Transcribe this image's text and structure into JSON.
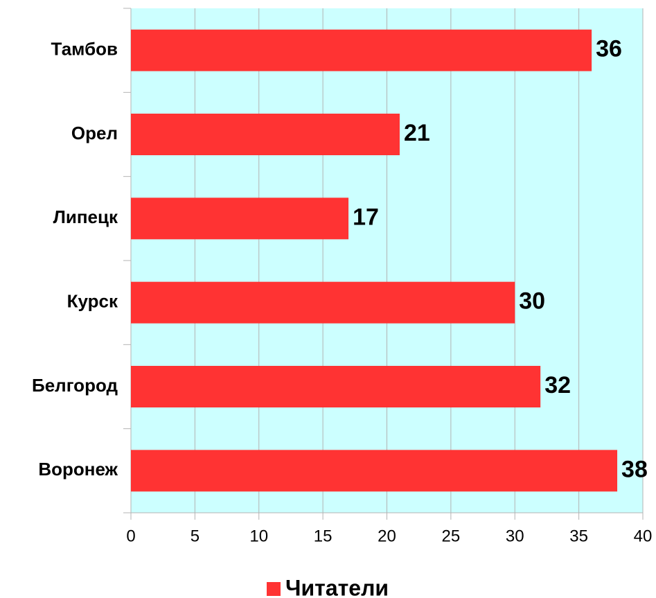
{
  "chart_data": {
    "type": "hbar",
    "categories": [
      "Тамбов",
      "Орел",
      "Липецк",
      "Курск",
      "Белгород",
      "Воронеж"
    ],
    "series": [
      {
        "name": "Читатели",
        "color": "#ff3333",
        "values": [
          36,
          21,
          17,
          30,
          32,
          38
        ]
      }
    ],
    "xlim": [
      0,
      40
    ],
    "xticks": [
      0,
      5,
      10,
      15,
      20,
      25,
      30,
      35,
      40
    ],
    "grid": true,
    "plot_background": "#ccffff",
    "legend": "bottom"
  }
}
